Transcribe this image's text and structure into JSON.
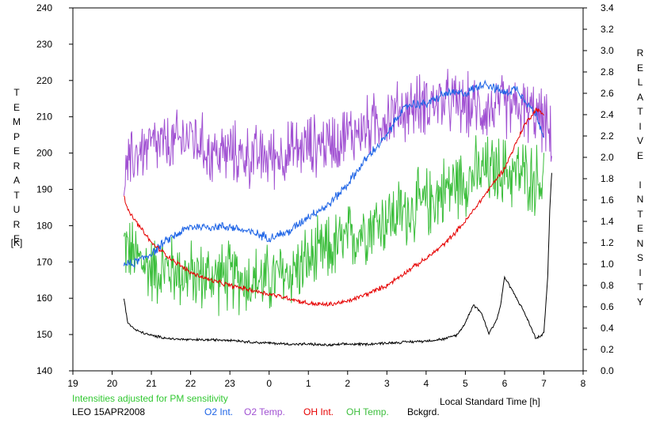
{
  "chart_data": {
    "type": "line",
    "title": "",
    "xlabel": "Local Standard Time [h]",
    "ylabel_left": "TEMPERATURE",
    "ylabel_left_unit": "[K]",
    "ylabel_right": "RELATIVE INTENSITY",
    "x_ticks": [
      "19",
      "20",
      "21",
      "22",
      "23",
      "0",
      "1",
      "2",
      "3",
      "4",
      "5",
      "6",
      "7",
      "8"
    ],
    "x_hours": [
      19,
      20,
      21,
      22,
      23,
      24,
      25,
      26,
      27,
      28,
      29,
      30,
      31,
      32
    ],
    "xlim": [
      19,
      32
    ],
    "ylim_left": [
      140,
      240
    ],
    "ylim_right": [
      0.0,
      3.4
    ],
    "y_left_ticks": [
      "140",
      "150",
      "160",
      "170",
      "180",
      "190",
      "200",
      "210",
      "220",
      "230",
      "240"
    ],
    "y_right_ticks": [
      "0.0",
      "0.2",
      "0.4",
      "0.6",
      "0.8",
      "1.0",
      "1.2",
      "1.4",
      "1.6",
      "1.8",
      "2.0",
      "2.2",
      "2.4",
      "2.6",
      "2.8",
      "3.0",
      "3.2",
      "3.4"
    ],
    "grid": false,
    "legend_position": "bottom",
    "series": [
      {
        "name": "O2 Int.",
        "axis": "right",
        "color": "#1e64e6",
        "noise": 0.035,
        "x": [
          20.3,
          20.5,
          21,
          21.5,
          22,
          22.5,
          23,
          23.5,
          24,
          24.5,
          25,
          25.5,
          26,
          26.5,
          27,
          27.3,
          27.6,
          28,
          28.5,
          29,
          29.5,
          30,
          30.3,
          30.5,
          30.8,
          31
        ],
        "values": [
          1.0,
          1.0,
          1.1,
          1.25,
          1.35,
          1.35,
          1.35,
          1.3,
          1.25,
          1.3,
          1.45,
          1.55,
          1.75,
          2.0,
          2.2,
          2.4,
          2.5,
          2.5,
          2.6,
          2.6,
          2.7,
          2.6,
          2.65,
          2.55,
          2.4,
          2.2
        ]
      },
      {
        "name": "O2 Temp.",
        "axis": "left",
        "color": "#a050d2",
        "noise": 7,
        "x": [
          20.3,
          20.6,
          21,
          21.5,
          22,
          22.5,
          23,
          23.5,
          24,
          24.5,
          25,
          25.5,
          26,
          26.5,
          27,
          27.5,
          28,
          28.5,
          29,
          29.5,
          30,
          30.5,
          31,
          31.2
        ],
        "values": [
          193,
          200,
          202,
          202,
          205,
          200,
          200,
          199,
          199,
          200,
          202,
          203,
          205,
          207,
          210,
          212,
          214,
          214,
          213,
          212,
          213,
          212,
          209,
          203
        ]
      },
      {
        "name": "OH Int.",
        "axis": "right",
        "color": "#e60000",
        "noise": 0.018,
        "x": [
          20.3,
          20.4,
          20.7,
          21,
          21.5,
          22,
          22.5,
          23,
          23.5,
          24,
          24.5,
          25,
          25.5,
          26,
          26.5,
          27,
          27.5,
          28,
          28.5,
          29,
          29.5,
          30,
          30.5,
          30.8,
          31
        ],
        "values": [
          1.65,
          1.5,
          1.35,
          1.2,
          1.05,
          0.92,
          0.85,
          0.8,
          0.76,
          0.72,
          0.68,
          0.63,
          0.62,
          0.65,
          0.72,
          0.8,
          0.93,
          1.05,
          1.2,
          1.4,
          1.65,
          1.9,
          2.3,
          2.45,
          2.4
        ]
      },
      {
        "name": "OH Temp.",
        "axis": "left",
        "color": "#3cbe3c",
        "noise": 8,
        "x": [
          20.3,
          20.5,
          21,
          21.5,
          22,
          22.5,
          23,
          23.5,
          24,
          24.5,
          25,
          25.5,
          26,
          26.5,
          27,
          27.5,
          28,
          28.5,
          29,
          29.5,
          30,
          30.5,
          31
        ],
        "values": [
          175,
          172,
          168,
          168,
          166,
          166,
          166,
          165,
          165,
          167,
          170,
          173,
          176,
          180,
          182,
          184,
          186,
          190,
          193,
          195,
          195,
          194,
          192
        ]
      },
      {
        "name": "Bckgrd.",
        "axis": "right",
        "color": "#000000",
        "noise": 0.01,
        "x": [
          20.3,
          20.4,
          20.6,
          21,
          21.5,
          22,
          22.5,
          23,
          23.5,
          24,
          24.5,
          25,
          25.5,
          26,
          26.5,
          27,
          27.5,
          28,
          28.5,
          28.8,
          29,
          29.2,
          29.4,
          29.6,
          29.8,
          29.9,
          30,
          30.2,
          30.5,
          30.8,
          31,
          31.1,
          31.15,
          31.2
        ],
        "values": [
          0.68,
          0.45,
          0.38,
          0.33,
          0.3,
          0.29,
          0.29,
          0.29,
          0.27,
          0.26,
          0.25,
          0.25,
          0.24,
          0.25,
          0.25,
          0.26,
          0.27,
          0.28,
          0.3,
          0.34,
          0.45,
          0.62,
          0.55,
          0.35,
          0.48,
          0.62,
          0.88,
          0.75,
          0.55,
          0.3,
          0.35,
          0.9,
          1.5,
          1.85
        ]
      }
    ]
  },
  "footer": {
    "note": "Intensities adjusted for PM sensitivity",
    "station": "LEO 15APR2008"
  },
  "colors": {
    "note": "#32c832",
    "axis": "#000000"
  }
}
